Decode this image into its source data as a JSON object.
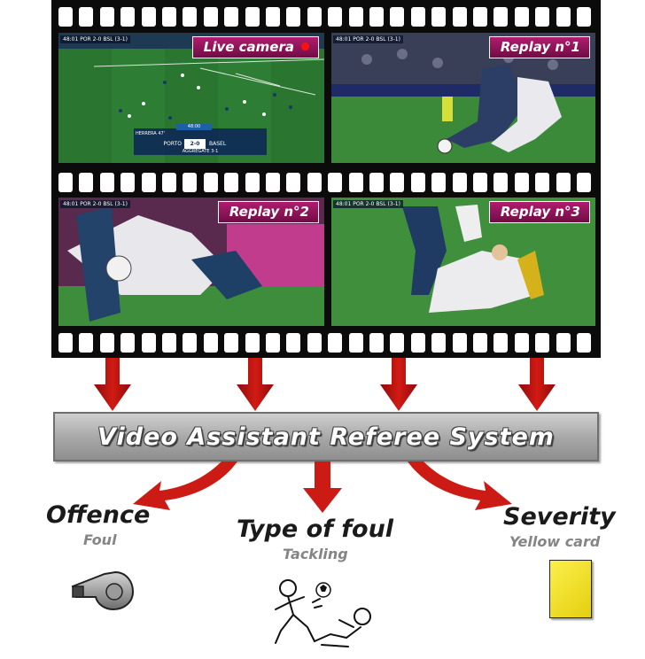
{
  "frames": [
    {
      "label": "Live camera",
      "live": true
    },
    {
      "label": "Replay n°1",
      "live": false
    },
    {
      "label": "Replay n°2",
      "live": false
    },
    {
      "label": "Replay n°3",
      "live": false
    }
  ],
  "broadcast": {
    "clock": "48:01",
    "home_short": "POR",
    "away_short": "BSL",
    "score": "2-0",
    "aggregate_short": "(3-1)",
    "home": "PORTO",
    "away": "BASEL",
    "player": "HERRERA",
    "player_number": "47'",
    "aggregate": "AGGREGATE 3-1",
    "minute_box": "48:00"
  },
  "system": {
    "title": "Video Assistant Referee System"
  },
  "outputs": {
    "offence": {
      "title": "Offence",
      "value": "Foul",
      "icon": "whistle-icon"
    },
    "foul_type": {
      "title": "Type of foul",
      "value": "Tackling",
      "icon": "tackle-sketch-icon"
    },
    "severity": {
      "title": "Severity",
      "value": "Yellow card",
      "icon": "yellow-card-icon"
    }
  },
  "colors": {
    "arrow": "#c0110e",
    "label_bg": "#8e1456",
    "card": "#f5e11b"
  }
}
